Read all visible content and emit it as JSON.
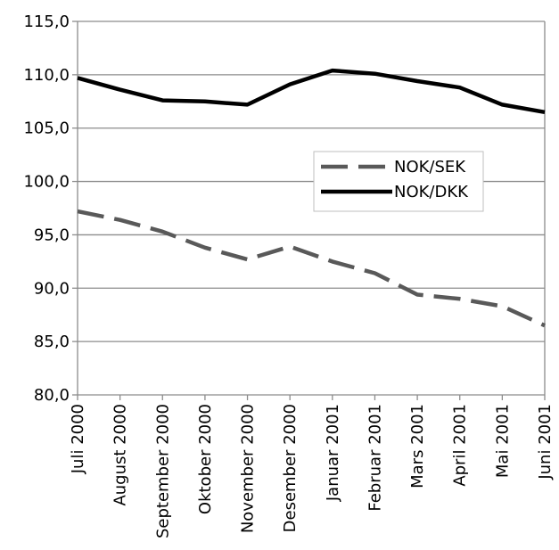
{
  "chart_data": {
    "type": "line",
    "categories": [
      "Juli 2000",
      "August 2000",
      "September 2000",
      "Oktober 2000",
      "November 2000",
      "Desember 2000",
      "Januar 2001",
      "Februar 2001",
      "Mars 2001",
      "April 2001",
      "Mai 2001",
      "Juni 2001"
    ],
    "series": [
      {
        "name": "NOK/SEK",
        "values": [
          97.2,
          96.4,
          95.3,
          93.8,
          92.7,
          93.9,
          92.5,
          91.4,
          89.4,
          89.0,
          88.3,
          86.5
        ],
        "color": "#595959",
        "dash": "dashed"
      },
      {
        "name": "NOK/DKK",
        "values": [
          109.7,
          108.6,
          107.6,
          107.5,
          107.2,
          109.1,
          110.4,
          110.1,
          109.4,
          108.8,
          107.2,
          106.5
        ],
        "color": "#000000",
        "dash": "solid"
      }
    ],
    "yticks": [
      "80,0",
      "85,0",
      "90,0",
      "95,0",
      "100,0",
      "105,0",
      "110,0",
      "115,0"
    ],
    "ylim": [
      80,
      115
    ],
    "grid": true,
    "legend_position": "center-right"
  }
}
